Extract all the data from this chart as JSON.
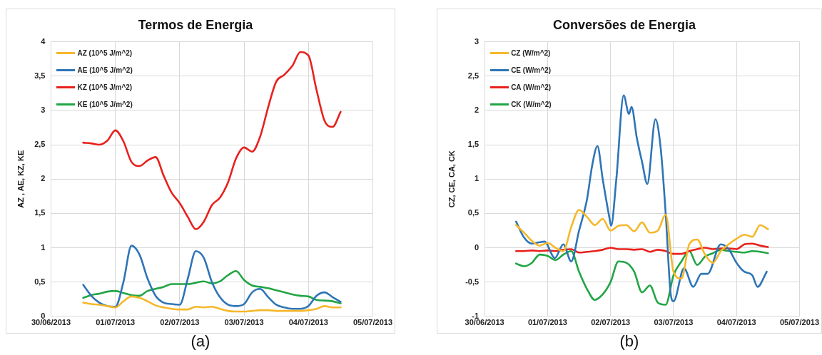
{
  "chart_data": [
    {
      "type": "line",
      "title": "Termos de Energia",
      "ylabel": "AZ , AE, KZ, KE",
      "annotations": [
        "(a)"
      ],
      "legend": "top left",
      "grid": true,
      "x": [
        "2013-06-30T12:00",
        "2013-06-30T15:00",
        "2013-06-30T18:00",
        "2013-06-30T21:00",
        "2013-07-01T00:00",
        "2013-07-01T03:00",
        "2013-07-01T06:00",
        "2013-07-01T09:00",
        "2013-07-01T12:00",
        "2013-07-01T15:00",
        "2013-07-01T18:00",
        "2013-07-01T21:00",
        "2013-07-02T00:00",
        "2013-07-02T03:00",
        "2013-07-02T06:00",
        "2013-07-02T09:00",
        "2013-07-02T12:00",
        "2013-07-02T15:00",
        "2013-07-02T18:00",
        "2013-07-02T21:00",
        "2013-07-03T00:00",
        "2013-07-03T03:00",
        "2013-07-03T06:00",
        "2013-07-03T09:00",
        "2013-07-03T12:00",
        "2013-07-03T15:00",
        "2013-07-03T18:00",
        "2013-07-03T21:00",
        "2013-07-04T00:00",
        "2013-07-04T03:00",
        "2013-07-04T06:00",
        "2013-07-04T09:00",
        "2013-07-04T12:00"
      ],
      "xlim": [
        "2013-06-30",
        "2013-07-05"
      ],
      "xticks": [
        {
          "value": "2013-06-30",
          "label": "30/06/2013"
        },
        {
          "value": "2013-07-01",
          "label": "01/07/2013"
        },
        {
          "value": "2013-07-02",
          "label": "02/07/2013"
        },
        {
          "value": "2013-07-03",
          "label": "03/07/2013"
        },
        {
          "value": "2013-07-04",
          "label": "04/07/2013"
        },
        {
          "value": "2013-07-05",
          "label": "05/07/2013"
        }
      ],
      "ylim": [
        0,
        4
      ],
      "yticks": [
        0,
        {
          "value": 0.5,
          "label": "0,5"
        },
        1,
        {
          "value": 1.5,
          "label": "1,5"
        },
        2,
        {
          "value": 2.5,
          "label": "2,5"
        },
        3,
        {
          "value": 3.5,
          "label": "3,5"
        },
        4
      ],
      "series": [
        {
          "name": "AZ (10^5 J/m^2)",
          "color": "#f5b82a",
          "values": [
            0.2,
            0.18,
            0.17,
            0.15,
            0.13,
            0.22,
            0.29,
            0.27,
            0.22,
            0.16,
            0.13,
            0.11,
            0.1,
            0.1,
            0.14,
            0.13,
            0.14,
            0.11,
            0.08,
            0.07,
            0.07,
            0.08,
            0.09,
            0.09,
            0.08,
            0.08,
            0.08,
            0.08,
            0.09,
            0.11,
            0.15,
            0.13,
            0.13
          ]
        },
        {
          "name": "AE (10^5 J/m^2)",
          "color": "#2e75b6",
          "values": [
            0.46,
            0.3,
            0.2,
            0.15,
            0.14,
            0.5,
            1.03,
            0.9,
            0.55,
            0.3,
            0.2,
            0.18,
            0.17,
            0.55,
            0.95,
            0.85,
            0.5,
            0.28,
            0.17,
            0.15,
            0.18,
            0.35,
            0.4,
            0.28,
            0.17,
            0.13,
            0.11,
            0.11,
            0.15,
            0.3,
            0.35,
            0.28,
            0.21
          ]
        },
        {
          "name": "KZ (10^5 J/m^2)",
          "color": "#e8211d",
          "values": [
            2.53,
            2.52,
            2.5,
            2.56,
            2.71,
            2.55,
            2.25,
            2.19,
            2.27,
            2.32,
            2.05,
            1.8,
            1.65,
            1.45,
            1.27,
            1.38,
            1.62,
            1.73,
            1.95,
            2.3,
            2.46,
            2.4,
            2.62,
            3.05,
            3.42,
            3.52,
            3.65,
            3.85,
            3.8,
            3.3,
            2.85,
            2.76,
            2.98
          ]
        },
        {
          "name": "KE (10^5 J/m^2)",
          "color": "#21a544",
          "values": [
            0.27,
            0.31,
            0.33,
            0.36,
            0.37,
            0.34,
            0.31,
            0.3,
            0.37,
            0.4,
            0.43,
            0.47,
            0.47,
            0.47,
            0.49,
            0.51,
            0.48,
            0.51,
            0.6,
            0.66,
            0.53,
            0.45,
            0.43,
            0.41,
            0.38,
            0.35,
            0.32,
            0.3,
            0.29,
            0.24,
            0.23,
            0.22,
            0.19
          ]
        }
      ]
    },
    {
      "type": "line",
      "title": "Conversões de Energia",
      "ylabel": "CZ, CE, CA, CK",
      "annotations": [
        "(b)"
      ],
      "legend": "top left",
      "grid": true,
      "x": [
        "2013-06-30T12:00",
        "2013-06-30T15:00",
        "2013-06-30T18:00",
        "2013-06-30T21:00",
        "2013-07-01T00:00",
        "2013-07-01T03:00",
        "2013-07-01T06:00",
        "2013-07-01T09:00",
        "2013-07-01T12:00",
        "2013-07-01T15:00",
        "2013-07-01T18:00",
        "2013-07-01T21:00",
        "2013-07-02T00:00",
        "2013-07-02T03:00",
        "2013-07-02T06:00",
        "2013-07-02T09:00",
        "2013-07-02T12:00",
        "2013-07-02T15:00",
        "2013-07-02T18:00",
        "2013-07-02T21:00",
        "2013-07-03T00:00",
        "2013-07-03T03:00",
        "2013-07-03T06:00",
        "2013-07-03T09:00",
        "2013-07-03T12:00",
        "2013-07-03T15:00",
        "2013-07-03T18:00",
        "2013-07-03T21:00",
        "2013-07-04T00:00",
        "2013-07-04T03:00",
        "2013-07-04T06:00",
        "2013-07-04T09:00",
        "2013-07-04T12:00"
      ],
      "xlim": [
        "2013-06-30",
        "2013-07-05"
      ],
      "xticks": [
        {
          "value": "2013-06-30",
          "label": "30/06/2013"
        },
        {
          "value": "2013-07-01",
          "label": "01/07/2013"
        },
        {
          "value": "2013-07-02",
          "label": "02/07/2013"
        },
        {
          "value": "2013-07-03",
          "label": "03/07/2013"
        },
        {
          "value": "2013-07-04",
          "label": "04/07/2013"
        },
        {
          "value": "2013-07-05",
          "label": "05/07/2013"
        }
      ],
      "ylim": [
        -1,
        3
      ],
      "yticks": [
        -1,
        {
          "value": -0.5,
          "label": "-0,5"
        },
        0,
        {
          "value": 0.5,
          "label": "0,5"
        },
        1,
        {
          "value": 1.5,
          "label": "1,5"
        },
        2,
        {
          "value": 2.5,
          "label": "2,5"
        },
        3
      ],
      "series": [
        {
          "name": "CZ (W/m^2)",
          "color": "#f5b82a",
          "values": [
            0.33,
            0.22,
            0.1,
            0.03,
            0.07,
            0.0,
            -0.05,
            0.3,
            0.55,
            0.45,
            0.33,
            0.42,
            0.25,
            0.32,
            0.33,
            0.24,
            0.37,
            0.22,
            0.25,
            0.48,
            -0.35,
            -0.45,
            0.05,
            0.12,
            -0.1,
            -0.22,
            -0.05,
            0.05,
            0.13,
            0.19,
            0.16,
            0.33,
            0.27
          ]
        },
        {
          "name": "CE (W/m^2)",
          "color": "#2e75b6",
          "x": [
            "2013-06-30T12:00",
            "2013-06-30T15:00",
            "2013-06-30T18:00",
            "2013-06-30T21:00",
            "2013-06-30T22:48",
            "2013-07-01T02:48",
            "2013-07-01T06:00",
            "2013-07-01T09:00",
            "2013-07-01T12:00",
            "2013-07-01T15:00",
            "2013-07-01T17:00",
            "2013-07-01T19:00",
            "2013-07-01T21:00",
            "2013-07-01T23:30",
            "2013-07-02T00:12",
            "2013-07-02T02:12",
            "2013-07-02T05:00",
            "2013-07-02T07:00",
            "2013-07-02T08:00",
            "2013-07-02T10:00",
            "2013-07-02T12:00",
            "2013-07-02T14:00",
            "2013-07-02T17:06",
            "2013-07-02T19:06",
            "2013-07-02T21:00",
            "2013-07-02T23:00",
            "2013-07-03T00:00",
            "2013-07-03T04:00",
            "2013-07-03T07:30",
            "2013-07-03T10:36",
            "2013-07-03T13:00",
            "2013-07-03T18:00",
            "2013-07-03T21:00",
            "2013-07-04T00:00",
            "2013-07-04T03:00",
            "2013-07-04T06:00",
            "2013-07-04T08:00",
            "2013-07-04T11:30"
          ],
          "values": [
            0.38,
            0.15,
            0.06,
            0.08,
            0.09,
            -0.15,
            0.05,
            -0.2,
            0.25,
            0.7,
            1.2,
            1.48,
            1.0,
            0.45,
            0.32,
            1.0,
            2.22,
            1.95,
            2.05,
            1.6,
            1.25,
            0.93,
            1.87,
            1.45,
            0.5,
            -0.7,
            -0.78,
            -0.3,
            -0.57,
            -0.38,
            -0.38,
            0.05,
            -0.02,
            -0.22,
            -0.35,
            -0.4,
            -0.57,
            -0.35
          ]
        },
        {
          "name": "CA (W/m^2)",
          "color": "#e8211d",
          "values": [
            -0.05,
            -0.05,
            -0.04,
            -0.05,
            -0.04,
            -0.05,
            -0.03,
            -0.02,
            -0.07,
            -0.06,
            -0.05,
            -0.03,
            0.0,
            -0.02,
            -0.02,
            -0.03,
            -0.02,
            -0.06,
            -0.03,
            -0.05,
            -0.09,
            -0.09,
            -0.05,
            -0.02,
            0.0,
            -0.02,
            -0.01,
            -0.01,
            -0.02,
            0.05,
            0.06,
            0.03,
            0.01
          ]
        },
        {
          "name": "CK (W/m^2)",
          "color": "#21a544",
          "values": [
            -0.23,
            -0.27,
            -0.22,
            -0.1,
            -0.12,
            -0.18,
            -0.1,
            -0.05,
            -0.35,
            -0.6,
            -0.76,
            -0.68,
            -0.5,
            -0.2,
            -0.22,
            -0.35,
            -0.65,
            -0.55,
            -0.8,
            -0.83,
            -0.4,
            -0.2,
            -0.05,
            -0.25,
            -0.13,
            -0.08,
            -0.03,
            -0.05,
            -0.06,
            -0.07,
            -0.05,
            -0.06,
            -0.08
          ]
        }
      ]
    }
  ]
}
